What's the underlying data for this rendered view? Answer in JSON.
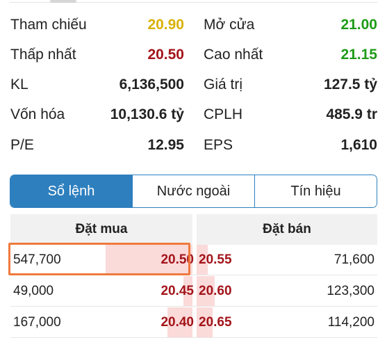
{
  "stats": [
    {
      "label": "Tham chiếu",
      "value": "20.90",
      "color": "#d9b106"
    },
    {
      "label": "Mở cửa",
      "value": "21.00",
      "color": "#1e9b17"
    },
    {
      "label": "Thấp nhất",
      "value": "20.50",
      "color": "#a3141a"
    },
    {
      "label": "Cao nhất",
      "value": "21.15",
      "color": "#1e9b17"
    },
    {
      "label": "KL",
      "value": "6,136,500",
      "color": "#222222"
    },
    {
      "label": "Giá trị",
      "value": "127.5 tỷ",
      "color": "#222222"
    },
    {
      "label": "Vốn hóa",
      "value": "10,130.6 tỷ",
      "color": "#222222"
    },
    {
      "label": "CPLH",
      "value": "485.9 tr",
      "color": "#222222"
    },
    {
      "label": "P/E",
      "value": "12.95",
      "color": "#222222"
    },
    {
      "label": "EPS",
      "value": "1,610",
      "color": "#222222"
    }
  ],
  "tabs": [
    {
      "label": "Sổ lệnh",
      "active": true
    },
    {
      "label": "Nước ngoài",
      "active": false
    },
    {
      "label": "Tín hiệu",
      "active": false
    }
  ],
  "order_book": {
    "buy_header": "Đặt mua",
    "sell_header": "Đặt bán",
    "rows": [
      {
        "buy_volume": "547,700",
        "buy_price": "20.50",
        "buy_level": 0.48,
        "sell_price": "20.55",
        "sell_volume": "71,600",
        "sell_level": 0.06
      },
      {
        "buy_volume": "49,000",
        "buy_price": "20.45",
        "buy_level": 0.05,
        "sell_price": "20.60",
        "sell_volume": "123,300",
        "sell_level": 0.1
      },
      {
        "buy_volume": "167,000",
        "buy_price": "20.40",
        "buy_level": 0.14,
        "sell_price": "20.65",
        "sell_volume": "114,200",
        "sell_level": 0.09
      }
    ]
  },
  "colors": {
    "accent": "#2e7fbe",
    "highlight": "#ef7a3d",
    "price_down": "#a3141a",
    "price_up": "#1e9b17",
    "reference": "#d9b106"
  }
}
